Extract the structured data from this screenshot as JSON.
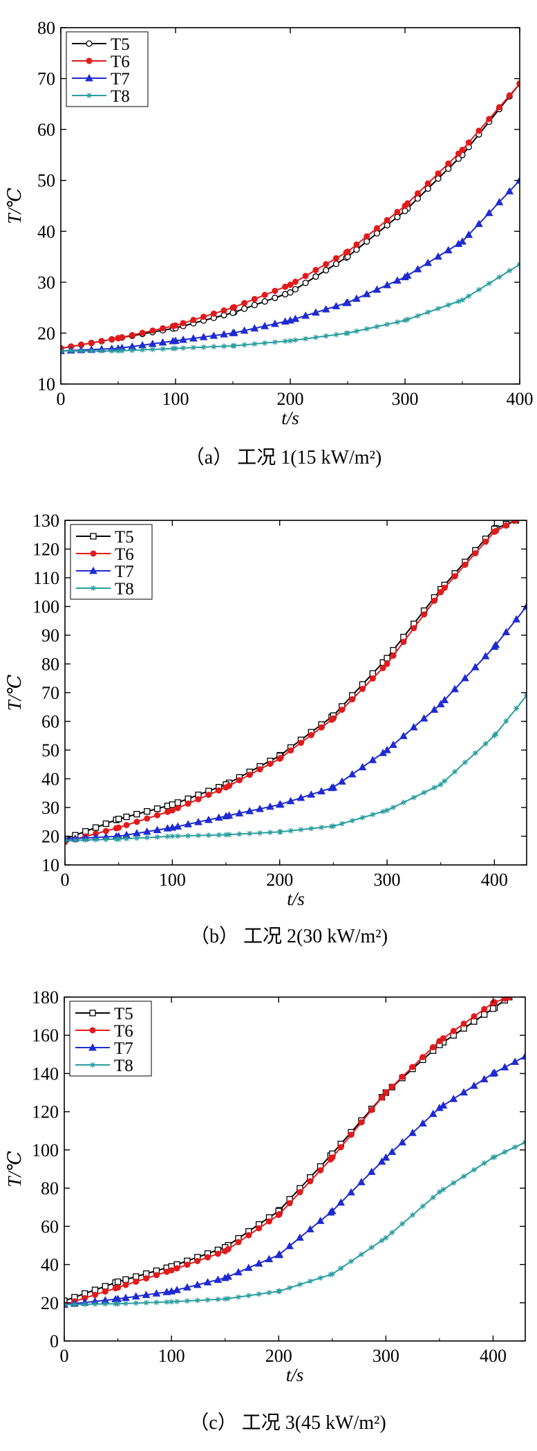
{
  "chart_data": [
    {
      "type": "line",
      "caption": "（a）  工况 1(15 kW/m²)",
      "xlabel": "t/s",
      "ylabel": "T/℃",
      "xlim": [
        0,
        400
      ],
      "ylim": [
        10,
        80
      ],
      "xticks": [
        0,
        100,
        200,
        300,
        400
      ],
      "yticks": [
        10,
        20,
        30,
        40,
        50,
        60,
        70,
        80
      ],
      "legend_position": "top-left",
      "grid": false,
      "series": [
        {
          "name": "T5",
          "color": "#000000",
          "marker": "open-circle",
          "x": [
            0,
            50,
            100,
            150,
            200,
            250,
            300,
            350,
            400
          ],
          "y": [
            17,
            19,
            21,
            24,
            28,
            35,
            44,
            55,
            69
          ]
        },
        {
          "name": "T6",
          "color": "#e31a1c",
          "marker": "filled-circle",
          "x": [
            0,
            50,
            100,
            150,
            200,
            250,
            300,
            350,
            400
          ],
          "y": [
            17,
            19,
            21.5,
            25,
            29.5,
            36,
            45,
            56,
            69
          ]
        },
        {
          "name": "T7",
          "color": "#1f2bd1",
          "marker": "filled-triangle",
          "x": [
            0,
            50,
            100,
            150,
            200,
            250,
            300,
            350,
            400
          ],
          "y": [
            16.5,
            17,
            18.5,
            20,
            22.5,
            26,
            31,
            38,
            50
          ]
        },
        {
          "name": "T8",
          "color": "#2a9d9f",
          "marker": "open-star",
          "x": [
            0,
            50,
            100,
            150,
            200,
            250,
            300,
            350,
            400
          ],
          "y": [
            16.5,
            16.5,
            17,
            17.5,
            18.5,
            20,
            22.5,
            26.5,
            33.5
          ]
        }
      ]
    },
    {
      "type": "line",
      "caption": "（b）  工况 2(30 kW/m²)",
      "xlabel": "t/s",
      "ylabel": "T/℃",
      "xlim": [
        0,
        430
      ],
      "ylim": [
        10,
        130
      ],
      "xticks": [
        0,
        100,
        200,
        300,
        400
      ],
      "yticks": [
        10,
        20,
        30,
        40,
        50,
        60,
        70,
        80,
        90,
        100,
        110,
        120,
        130
      ],
      "legend_position": "top-left",
      "grid": false,
      "series": [
        {
          "name": "T5",
          "color": "#000000",
          "marker": "open-square",
          "x": [
            0,
            50,
            100,
            150,
            200,
            250,
            300,
            350,
            400,
            420
          ],
          "y": [
            19,
            26,
            31,
            38,
            48,
            62,
            82,
            106,
            127,
            130
          ]
        },
        {
          "name": "T6",
          "color": "#e31a1c",
          "marker": "filled-circle",
          "x": [
            0,
            50,
            100,
            150,
            200,
            250,
            300,
            350,
            400,
            420
          ],
          "y": [
            18,
            23,
            29,
            37,
            47,
            61,
            80,
            105,
            126,
            130
          ]
        },
        {
          "name": "T7",
          "color": "#1f2bd1",
          "marker": "filled-triangle",
          "x": [
            0,
            50,
            100,
            150,
            200,
            250,
            300,
            350,
            400,
            430
          ],
          "y": [
            19,
            20,
            23,
            27,
            31,
            37,
            50,
            66,
            86,
            100
          ]
        },
        {
          "name": "T8",
          "color": "#2a9d9f",
          "marker": "open-star",
          "x": [
            0,
            50,
            100,
            150,
            200,
            250,
            300,
            350,
            400,
            430
          ],
          "y": [
            18.5,
            19,
            20,
            20.5,
            21.5,
            23.5,
            29,
            38,
            55,
            69
          ]
        }
      ]
    },
    {
      "type": "line",
      "caption": "（c）  工况 3(45 kW/m²)",
      "xlabel": "t/s",
      "ylabel": "T/℃",
      "xlim": [
        0,
        430
      ],
      "ylim": [
        0,
        180
      ],
      "xticks": [
        0,
        100,
        200,
        300,
        400
      ],
      "yticks": [
        0,
        20,
        40,
        60,
        80,
        100,
        120,
        140,
        160,
        180
      ],
      "legend_position": "top-left",
      "grid": false,
      "series": [
        {
          "name": "T5",
          "color": "#000000",
          "marker": "open-square",
          "x": [
            0,
            50,
            100,
            150,
            200,
            250,
            300,
            350,
            400,
            415
          ],
          "y": [
            21,
            31,
            39,
            49,
            68,
            98,
            130,
            155,
            174,
            180
          ]
        },
        {
          "name": "T6",
          "color": "#e31a1c",
          "marker": "filled-circle",
          "x": [
            0,
            50,
            100,
            150,
            200,
            250,
            300,
            350,
            400,
            415
          ],
          "y": [
            19,
            28,
            37,
            47,
            66,
            96,
            130,
            157,
            177,
            180
          ]
        },
        {
          "name": "T7",
          "color": "#1f2bd1",
          "marker": "filled-triangle",
          "x": [
            0,
            50,
            100,
            150,
            200,
            250,
            300,
            350,
            400,
            430
          ],
          "y": [
            19,
            22,
            26,
            33,
            45,
            68,
            96,
            122,
            140,
            149
          ]
        },
        {
          "name": "T8",
          "color": "#2a9d9f",
          "marker": "open-star",
          "x": [
            0,
            50,
            100,
            150,
            200,
            250,
            300,
            350,
            400,
            430
          ],
          "y": [
            19,
            19.5,
            20.5,
            22,
            26,
            35,
            54,
            78,
            96,
            104
          ]
        }
      ]
    }
  ]
}
